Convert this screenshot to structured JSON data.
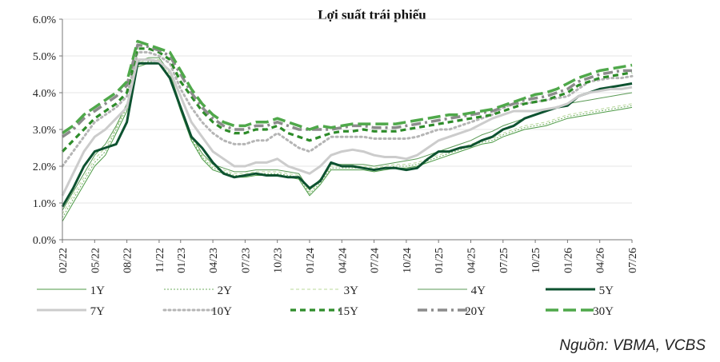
{
  "chart_data": {
    "type": "line",
    "title": "Lợi suất trái phiếu",
    "source": "Nguồn: VBMA, VCBS",
    "ylim": [
      0,
      6
    ],
    "y_ticks": [
      "0.0%",
      "1.0%",
      "2.0%",
      "3.0%",
      "4.0%",
      "5.0%",
      "6.0%"
    ],
    "x_ticks": [
      "02/22",
      "05/22",
      "08/22",
      "11/22",
      "01/23",
      "04/23",
      "07/23",
      "10/23",
      "01/24",
      "04/24",
      "07/24",
      "10/24",
      "01/25",
      "04/25",
      "07/25",
      "10/25",
      "01/26",
      "04/26",
      "07/26"
    ],
    "x_anchor_index": [
      0,
      3,
      6,
      9,
      11,
      14,
      17,
      20,
      23,
      26,
      29,
      32,
      35,
      38,
      41,
      44,
      47,
      50,
      53
    ],
    "series": [
      {
        "name": "1Y",
        "color": "#4c9a45",
        "style": "thin",
        "values": [
          0.5,
          1.0,
          1.5,
          2.0,
          2.3,
          2.9,
          3.5,
          4.7,
          4.8,
          4.8,
          4.4,
          3.5,
          2.7,
          2.2,
          1.9,
          1.8,
          1.7,
          1.7,
          1.75,
          1.75,
          1.75,
          1.7,
          1.65,
          1.2,
          1.5,
          1.9,
          1.9,
          1.9,
          1.9,
          1.85,
          1.9,
          1.95,
          1.95,
          2.0,
          2.1,
          2.2,
          2.3,
          2.4,
          2.5,
          2.6,
          2.65,
          2.8,
          2.9,
          3.0,
          3.05,
          3.1,
          3.2,
          3.3,
          3.35,
          3.4,
          3.45,
          3.5,
          3.55,
          3.6
        ]
      },
      {
        "name": "2Y",
        "color": "#6fae5f",
        "style": "dotted-thin",
        "values": [
          0.6,
          1.1,
          1.6,
          2.1,
          2.4,
          3.0,
          3.6,
          4.75,
          4.85,
          4.85,
          4.45,
          3.55,
          2.75,
          2.25,
          1.95,
          1.85,
          1.75,
          1.75,
          1.8,
          1.8,
          1.8,
          1.75,
          1.7,
          1.25,
          1.55,
          1.95,
          1.95,
          1.95,
          1.95,
          1.9,
          1.95,
          2.0,
          2.0,
          2.05,
          2.15,
          2.25,
          2.35,
          2.45,
          2.55,
          2.65,
          2.7,
          2.85,
          2.95,
          3.05,
          3.1,
          3.15,
          3.25,
          3.35,
          3.4,
          3.45,
          3.5,
          3.55,
          3.6,
          3.65
        ]
      },
      {
        "name": "3Y",
        "color": "#b8d89a",
        "style": "dashed-thin",
        "values": [
          0.7,
          1.2,
          1.7,
          2.2,
          2.5,
          3.05,
          3.65,
          4.8,
          4.9,
          4.9,
          4.5,
          3.6,
          2.8,
          2.3,
          2.0,
          1.9,
          1.8,
          1.8,
          1.85,
          1.85,
          1.85,
          1.8,
          1.75,
          1.3,
          1.6,
          2.0,
          2.0,
          2.0,
          2.0,
          1.95,
          2.0,
          2.05,
          2.05,
          2.1,
          2.2,
          2.3,
          2.4,
          2.5,
          2.6,
          2.7,
          2.75,
          2.9,
          3.0,
          3.1,
          3.15,
          3.2,
          3.3,
          3.4,
          3.45,
          3.5,
          3.55,
          3.6,
          3.65,
          3.7
        ]
      },
      {
        "name": "4Y",
        "color": "#5a9a55",
        "style": "thin",
        "values": [
          0.8,
          1.3,
          1.8,
          2.3,
          2.6,
          3.1,
          3.7,
          4.85,
          4.95,
          4.95,
          4.55,
          3.65,
          2.85,
          2.35,
          2.05,
          1.95,
          1.85,
          1.85,
          1.9,
          1.9,
          1.9,
          1.85,
          1.8,
          1.35,
          1.65,
          2.05,
          2.05,
          2.05,
          2.05,
          2.0,
          2.05,
          2.1,
          2.15,
          2.2,
          2.3,
          2.4,
          2.5,
          2.6,
          2.7,
          2.85,
          2.95,
          3.1,
          3.2,
          3.3,
          3.4,
          3.5,
          3.6,
          3.7,
          3.75,
          3.8,
          3.85,
          3.9,
          3.95,
          4.0
        ]
      },
      {
        "name": "5Y",
        "color": "#0d5230",
        "style": "thick",
        "values": [
          0.9,
          1.4,
          2.0,
          2.4,
          2.5,
          2.6,
          3.2,
          4.8,
          4.8,
          4.8,
          4.4,
          3.6,
          2.8,
          2.5,
          2.1,
          1.8,
          1.7,
          1.75,
          1.8,
          1.75,
          1.75,
          1.7,
          1.7,
          1.4,
          1.6,
          2.1,
          2.0,
          2.0,
          1.95,
          1.9,
          1.95,
          1.95,
          1.9,
          1.95,
          2.2,
          2.4,
          2.4,
          2.5,
          2.55,
          2.7,
          2.8,
          3.0,
          3.1,
          3.3,
          3.4,
          3.5,
          3.6,
          3.65,
          3.9,
          4.0,
          4.1,
          4.15,
          4.2,
          4.25
        ]
      },
      {
        "name": "7Y",
        "color": "#cccccc",
        "style": "thick",
        "values": [
          1.2,
          1.8,
          2.4,
          2.8,
          3.0,
          3.3,
          3.6,
          4.9,
          4.9,
          4.85,
          4.6,
          3.9,
          3.2,
          2.8,
          2.4,
          2.2,
          2.0,
          2.0,
          2.1,
          2.1,
          2.2,
          2.0,
          1.9,
          1.8,
          2.0,
          2.3,
          2.4,
          2.45,
          2.4,
          2.3,
          2.25,
          2.25,
          2.2,
          2.3,
          2.5,
          2.7,
          2.8,
          2.9,
          3.0,
          3.15,
          3.3,
          3.4,
          3.5,
          3.5,
          3.5,
          3.55,
          3.6,
          3.7,
          3.9,
          4.0,
          4.05,
          4.1,
          4.1,
          4.15
        ]
      },
      {
        "name": "10Y",
        "color": "#b5b5b5",
        "style": "dotted",
        "values": [
          2.0,
          2.4,
          2.8,
          3.2,
          3.4,
          3.6,
          3.9,
          5.1,
          5.1,
          5.0,
          4.8,
          4.1,
          3.6,
          3.2,
          2.9,
          2.7,
          2.6,
          2.6,
          2.7,
          2.7,
          2.9,
          2.7,
          2.5,
          2.4,
          2.6,
          2.8,
          2.8,
          2.8,
          2.8,
          2.75,
          2.75,
          2.75,
          2.75,
          2.8,
          2.9,
          3.0,
          3.0,
          3.1,
          3.2,
          3.3,
          3.4,
          3.6,
          3.7,
          3.7,
          3.75,
          3.8,
          3.85,
          3.9,
          4.1,
          4.3,
          4.35,
          4.4,
          4.4,
          4.45
        ]
      },
      {
        "name": "15Y",
        "color": "#2e8c2a",
        "style": "dashed",
        "values": [
          2.4,
          2.7,
          3.0,
          3.3,
          3.5,
          3.7,
          4.0,
          5.2,
          5.2,
          5.1,
          4.9,
          4.3,
          3.9,
          3.5,
          3.2,
          3.0,
          2.9,
          2.9,
          3.0,
          3.0,
          3.1,
          2.9,
          2.8,
          2.7,
          2.8,
          2.9,
          2.95,
          2.95,
          3.0,
          2.95,
          2.95,
          2.95,
          3.0,
          3.05,
          3.1,
          3.15,
          3.2,
          3.25,
          3.3,
          3.35,
          3.4,
          3.5,
          3.6,
          3.7,
          3.75,
          3.8,
          3.9,
          4.0,
          4.2,
          4.3,
          4.4,
          4.45,
          4.5,
          4.55
        ]
      },
      {
        "name": "20Y",
        "color": "#8c8c8c",
        "style": "dashdot",
        "values": [
          2.8,
          3.0,
          3.3,
          3.5,
          3.7,
          3.9,
          4.2,
          5.3,
          5.25,
          5.15,
          5.0,
          4.5,
          4.0,
          3.6,
          3.3,
          3.1,
          3.0,
          3.0,
          3.1,
          3.1,
          3.2,
          3.1,
          3.0,
          3.0,
          3.0,
          3.0,
          3.05,
          3.1,
          3.1,
          3.05,
          3.05,
          3.05,
          3.1,
          3.15,
          3.2,
          3.25,
          3.3,
          3.35,
          3.4,
          3.45,
          3.5,
          3.6,
          3.7,
          3.8,
          3.85,
          3.9,
          4.0,
          4.1,
          4.3,
          4.4,
          4.5,
          4.55,
          4.6,
          4.6
        ]
      },
      {
        "name": "30Y",
        "color": "#4fa84a",
        "style": "longdash",
        "values": [
          2.9,
          3.1,
          3.4,
          3.6,
          3.8,
          4.0,
          4.3,
          5.4,
          5.3,
          5.2,
          5.1,
          4.6,
          4.1,
          3.7,
          3.4,
          3.2,
          3.1,
          3.1,
          3.2,
          3.2,
          3.3,
          3.2,
          3.1,
          3.0,
          3.1,
          3.05,
          3.1,
          3.15,
          3.15,
          3.15,
          3.15,
          3.15,
          3.2,
          3.25,
          3.3,
          3.35,
          3.4,
          3.4,
          3.45,
          3.5,
          3.55,
          3.65,
          3.75,
          3.85,
          3.95,
          4.0,
          4.1,
          4.25,
          4.4,
          4.5,
          4.6,
          4.65,
          4.7,
          4.75
        ]
      }
    ]
  }
}
